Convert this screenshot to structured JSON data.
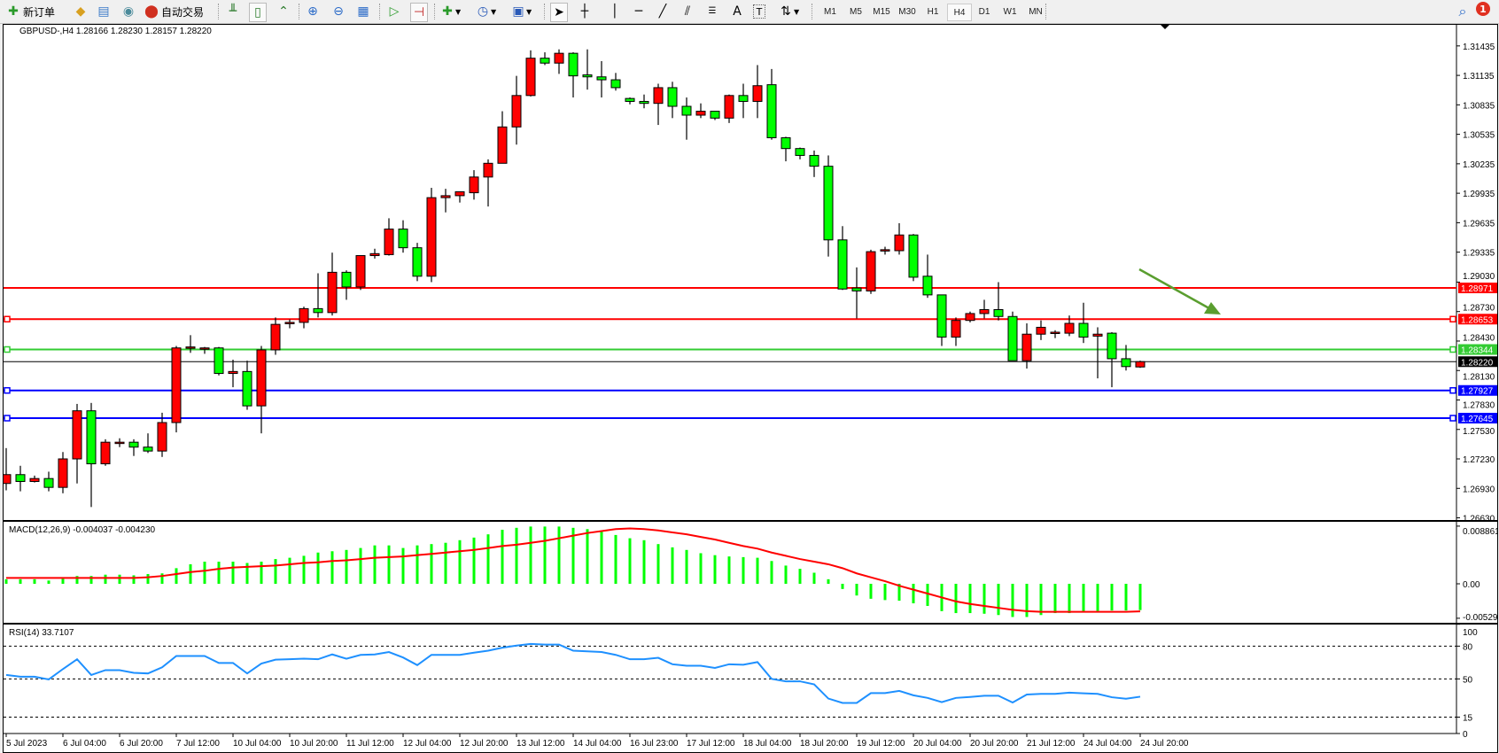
{
  "toolbar": {
    "new_order_label": "新订单",
    "auto_trading_label": "自动交易",
    "icons": [
      "new-order-icon",
      "market-watch-icon",
      "data-window-icon",
      "navigator-icon",
      "auto-trading-icon",
      "bar-chart-icon",
      "candlestick-icon",
      "line-chart-icon",
      "zoom-in-icon",
      "zoom-out-icon",
      "tile-windows-icon",
      "auto-scroll-icon",
      "chart-shift-icon",
      "indicators-icon",
      "periods-icon",
      "templates-icon",
      "cursor-icon",
      "crosshair-icon",
      "vertical-line-icon",
      "horizontal-line-icon",
      "trendline-icon",
      "equidistant-channel-icon",
      "fibonacci-icon",
      "text-icon",
      "text-label-icon",
      "arrows-icon"
    ],
    "text_tool_label": "A",
    "text_label_tool": "T",
    "timeframes": [
      "M1",
      "M5",
      "M15",
      "M30",
      "H1",
      "H4",
      "D1",
      "W1",
      "MN"
    ],
    "active_timeframe": "H4",
    "notification_count": "1"
  },
  "chart": {
    "header": "GBPUSD-,H4  1.28166 1.28230 1.28157 1.28220",
    "colors": {
      "bull": "#ff0000",
      "bear": "#00ff00",
      "macd_hist": "#00ff00",
      "signal": "#ff0000",
      "rsi": "#1e90ff"
    },
    "price_ticks": [
      "1.31435",
      "1.31135",
      "1.30835",
      "1.30535",
      "1.30235",
      "1.29935",
      "1.29635",
      "1.29335",
      "1.29030",
      "1.28730",
      "1.28430",
      "1.28130",
      "1.27830",
      "1.27530",
      "1.27230",
      "1.26930",
      "1.26630"
    ],
    "levels": [
      {
        "price": "1.28971",
        "color": "#ff0000",
        "marker": false
      },
      {
        "price": "1.28653",
        "color": "#ff0000",
        "marker": true
      },
      {
        "price": "1.28344",
        "color": "#33cc33",
        "marker": true
      },
      {
        "price": "1.28220",
        "color": "#000000",
        "marker": false,
        "bid": true
      },
      {
        "price": "1.27927",
        "color": "#0000ff",
        "marker": true
      },
      {
        "price": "1.27645",
        "color": "#0000ff",
        "marker": true
      }
    ],
    "arrow": {
      "color": "#5a9e2f",
      "direction": "down-right"
    },
    "time_labels": [
      "5 Jul 2023",
      "6 Jul 04:00",
      "6 Jul 20:00",
      "7 Jul 12:00",
      "10 Jul 04:00",
      "10 Jul 20:00",
      "11 Jul 12:00",
      "12 Jul 04:00",
      "12 Jul 20:00",
      "13 Jul 12:00",
      "14 Jul 04:00",
      "16 Jul 23:00",
      "17 Jul 12:00",
      "18 Jul 04:00",
      "18 Jul 20:00",
      "19 Jul 12:00",
      "20 Jul 04:00",
      "20 Jul 20:00",
      "21 Jul 12:00",
      "24 Jul 04:00",
      "24 Jul 20:00"
    ]
  },
  "macd": {
    "label": "MACD(12,26,9) -0.004037 -0.004230",
    "ticks": [
      "0.008861",
      "0.00",
      "-0.005294"
    ]
  },
  "rsi": {
    "label": "RSI(14) 33.7107",
    "ticks": [
      "100",
      "80",
      "50",
      "15",
      "0"
    ]
  },
  "chart_data": {
    "type": "candlestick",
    "symbol": "GBPUSD-",
    "timeframe": "H4",
    "ylim": [
      1.2663,
      1.3144
    ],
    "ohlc": [
      [
        1.2698,
        1.2734,
        1.2691,
        1.2707
      ],
      [
        1.2707,
        1.2716,
        1.269,
        1.27
      ],
      [
        1.27,
        1.2706,
        1.2699,
        1.2703
      ],
      [
        1.2703,
        1.271,
        1.269,
        1.2694
      ],
      [
        1.2694,
        1.273,
        1.2688,
        1.2723
      ],
      [
        1.2723,
        1.2779,
        1.2698,
        1.2772
      ],
      [
        1.2772,
        1.278,
        1.2674,
        1.2718
      ],
      [
        1.2718,
        1.2743,
        1.2716,
        1.274
      ],
      [
        1.2739,
        1.2744,
        1.2735,
        1.274
      ],
      [
        1.274,
        1.2743,
        1.2726,
        1.2735
      ],
      [
        1.2735,
        1.2749,
        1.2729,
        1.2731
      ],
      [
        1.2731,
        1.277,
        1.2725,
        1.276
      ],
      [
        1.276,
        1.2838,
        1.275,
        1.2836
      ],
      [
        1.2836,
        1.2849,
        1.2831,
        1.2837
      ],
      [
        1.2835,
        1.2837,
        1.283,
        1.2836
      ],
      [
        1.2836,
        1.2837,
        1.2808,
        1.281
      ],
      [
        1.281,
        1.2824,
        1.2796,
        1.2812
      ],
      [
        1.2812,
        1.2823,
        1.2773,
        1.2777
      ],
      [
        1.2777,
        1.2838,
        1.2749,
        1.2834
      ],
      [
        1.2834,
        1.2867,
        1.2829,
        1.286
      ],
      [
        1.2861,
        1.2865,
        1.2856,
        1.2862
      ],
      [
        1.2862,
        1.2878,
        1.2856,
        1.2876
      ],
      [
        1.2876,
        1.2912,
        1.2867,
        1.2872
      ],
      [
        1.2872,
        1.2933,
        1.2869,
        1.2913
      ],
      [
        1.2913,
        1.2915,
        1.2885,
        1.2898
      ],
      [
        1.2898,
        1.293,
        1.2895,
        1.293
      ],
      [
        1.293,
        1.2937,
        1.2927,
        1.2932
      ],
      [
        1.2931,
        1.2968,
        1.293,
        1.2957
      ],
      [
        1.2957,
        1.2966,
        1.2933,
        1.2938
      ],
      [
        1.2938,
        1.2943,
        1.2904,
        1.2909
      ],
      [
        1.2909,
        1.2999,
        1.2903,
        1.2989
      ],
      [
        1.2989,
        1.2998,
        1.2974,
        1.2991
      ],
      [
        1.2991,
        1.2995,
        1.2984,
        1.2995
      ],
      [
        1.2994,
        1.3017,
        1.2987,
        1.301
      ],
      [
        1.301,
        1.3028,
        1.298,
        1.3024
      ],
      [
        1.3024,
        1.3077,
        1.3024,
        1.3061
      ],
      [
        1.3061,
        1.3113,
        1.3043,
        1.3093
      ],
      [
        1.3093,
        1.3139,
        1.3092,
        1.3131
      ],
      [
        1.3131,
        1.3137,
        1.3124,
        1.3126
      ],
      [
        1.3126,
        1.314,
        1.3115,
        1.3136
      ],
      [
        1.3136,
        1.3137,
        1.3091,
        1.3113
      ],
      [
        1.3114,
        1.314,
        1.3099,
        1.3112
      ],
      [
        1.3112,
        1.3128,
        1.3091,
        1.3109
      ],
      [
        1.3109,
        1.3116,
        1.3098,
        1.3101
      ],
      [
        1.309,
        1.3091,
        1.3084,
        1.3087
      ],
      [
        1.3087,
        1.3094,
        1.308,
        1.3085
      ],
      [
        1.3085,
        1.3105,
        1.3063,
        1.3101
      ],
      [
        1.3101,
        1.3107,
        1.307,
        1.3082
      ],
      [
        1.3082,
        1.3091,
        1.3048,
        1.3073
      ],
      [
        1.3073,
        1.3085,
        1.307,
        1.3077
      ],
      [
        1.3077,
        1.3077,
        1.3068,
        1.307
      ],
      [
        1.307,
        1.3094,
        1.3065,
        1.3093
      ],
      [
        1.3093,
        1.3105,
        1.307,
        1.3087
      ],
      [
        1.3087,
        1.3124,
        1.307,
        1.3103
      ],
      [
        1.3104,
        1.312,
        1.3048,
        1.305
      ],
      [
        1.305,
        1.3051,
        1.3026,
        1.3039
      ],
      [
        1.3039,
        1.304,
        1.3028,
        1.3032
      ],
      [
        1.3032,
        1.3037,
        1.301,
        1.3021
      ],
      [
        1.3021,
        1.3032,
        1.2929,
        1.2946
      ],
      [
        1.2946,
        1.296,
        1.2895,
        1.2896
      ],
      [
        1.2897,
        1.2918,
        1.2866,
        1.2894
      ],
      [
        1.2894,
        1.2936,
        1.2891,
        1.2934
      ],
      [
        1.2935,
        1.2939,
        1.2931,
        1.2936
      ],
      [
        1.2935,
        1.2963,
        1.2931,
        1.2951
      ],
      [
        1.2951,
        1.2952,
        1.2904,
        1.2908
      ],
      [
        1.2909,
        1.2931,
        1.2887,
        1.289
      ],
      [
        1.289,
        1.289,
        1.2838,
        1.2847
      ],
      [
        1.2847,
        1.2867,
        1.2838,
        1.2864
      ],
      [
        1.2864,
        1.2873,
        1.2862,
        1.2871
      ],
      [
        1.2871,
        1.2885,
        1.2866,
        1.2875
      ],
      [
        1.2875,
        1.2903,
        1.2864,
        1.2868
      ],
      [
        1.2868,
        1.2873,
        1.2823,
        1.2823
      ],
      [
        1.2823,
        1.2861,
        1.2815,
        1.285
      ],
      [
        1.285,
        1.2864,
        1.2844,
        1.2857
      ],
      [
        1.2851,
        1.2854,
        1.2846,
        1.2852
      ],
      [
        1.2851,
        1.2869,
        1.2848,
        1.2861
      ],
      [
        1.2861,
        1.2882,
        1.2841,
        1.2847
      ],
      [
        1.2848,
        1.2857,
        1.2805,
        1.285
      ],
      [
        1.2851,
        1.2852,
        1.2796,
        1.2825
      ],
      [
        1.2825,
        1.2839,
        1.2813,
        1.2817
      ],
      [
        1.28166,
        1.2823,
        1.28157,
        1.2822
      ]
    ],
    "macd_ylim": [
      -0.005294,
      0.008861
    ],
    "macd_hist": [
      0.0007,
      0.0007,
      0.0007,
      0.0005,
      0.0008,
      0.0012,
      0.0012,
      0.0014,
      0.0014,
      0.0013,
      0.0015,
      0.0016,
      0.0024,
      0.003,
      0.0034,
      0.0034,
      0.0034,
      0.0032,
      0.0034,
      0.0038,
      0.004,
      0.0043,
      0.0048,
      0.005,
      0.0052,
      0.0055,
      0.0059,
      0.0059,
      0.0055,
      0.0059,
      0.0061,
      0.0063,
      0.0067,
      0.0071,
      0.0076,
      0.0083,
      0.0086,
      0.0088,
      0.0088,
      0.0088,
      0.0086,
      0.0084,
      0.008,
      0.0075,
      0.007,
      0.0067,
      0.0061,
      0.0056,
      0.0052,
      0.0047,
      0.0044,
      0.0042,
      0.0041,
      0.004,
      0.0035,
      0.0028,
      0.0023,
      0.0017,
      0.0007,
      -0.0008,
      -0.0018,
      -0.0023,
      -0.0025,
      -0.0026,
      -0.003,
      -0.0034,
      -0.0042,
      -0.0045,
      -0.0045,
      -0.0046,
      -0.0048,
      -0.0051,
      -0.0051,
      -0.0048,
      -0.0045,
      -0.0045,
      -0.0044,
      -0.0042,
      -0.0041,
      -0.0041,
      -0.004037
    ],
    "macd_signal": [
      0.0009,
      0.0009,
      0.0009,
      0.0009,
      0.0009,
      0.0009,
      0.0009,
      0.0009,
      0.0009,
      0.0009,
      0.001,
      0.0012,
      0.0015,
      0.0018,
      0.002,
      0.0023,
      0.0025,
      0.0026,
      0.0027,
      0.0028,
      0.003,
      0.0032,
      0.0033,
      0.0035,
      0.0036,
      0.0038,
      0.004,
      0.0041,
      0.0042,
      0.0044,
      0.0046,
      0.0048,
      0.005,
      0.0052,
      0.0055,
      0.0058,
      0.006,
      0.0063,
      0.0066,
      0.007,
      0.0074,
      0.0078,
      0.0081,
      0.0084,
      0.0085,
      0.0084,
      0.0082,
      0.0079,
      0.0076,
      0.0072,
      0.0068,
      0.0063,
      0.0058,
      0.0054,
      0.0048,
      0.0043,
      0.0038,
      0.0034,
      0.003,
      0.0024,
      0.0016,
      0.001,
      0.0004,
      -0.0003,
      -0.0009,
      -0.0015,
      -0.0021,
      -0.0027,
      -0.0031,
      -0.0034,
      -0.0037,
      -0.004,
      -0.0042,
      -0.0043,
      -0.0043,
      -0.0043,
      -0.0043,
      -0.0043,
      -0.0043,
      -0.0043,
      -0.00423
    ],
    "rsi_levels": [
      80,
      50,
      15
    ],
    "rsi": [
      53.6,
      52,
      52,
      49.5,
      59,
      68,
      53.6,
      58,
      58,
      55.6,
      55,
      60.6,
      71,
      71,
      71,
      64.6,
      64.6,
      55,
      64,
      67.6,
      68,
      68.5,
      68,
      72.4,
      68.5,
      72,
      72.4,
      74.6,
      69.6,
      62.6,
      72,
      72,
      72,
      74,
      75.8,
      78.6,
      80.5,
      82,
      81.4,
      81.4,
      75.8,
      75.2,
      74.6,
      72,
      68,
      68,
      69.3,
      63.4,
      62,
      62,
      60,
      63.4,
      63,
      65.4,
      50,
      47.8,
      47.8,
      45,
      32,
      28,
      28,
      37,
      37,
      39,
      35,
      32.6,
      28.7,
      32.6,
      33.5,
      34.6,
      34.6,
      28.4,
      35.7,
      36.3,
      36.3,
      37.4,
      36.8,
      36.3,
      33.2,
      31.8,
      33.7107
    ]
  }
}
